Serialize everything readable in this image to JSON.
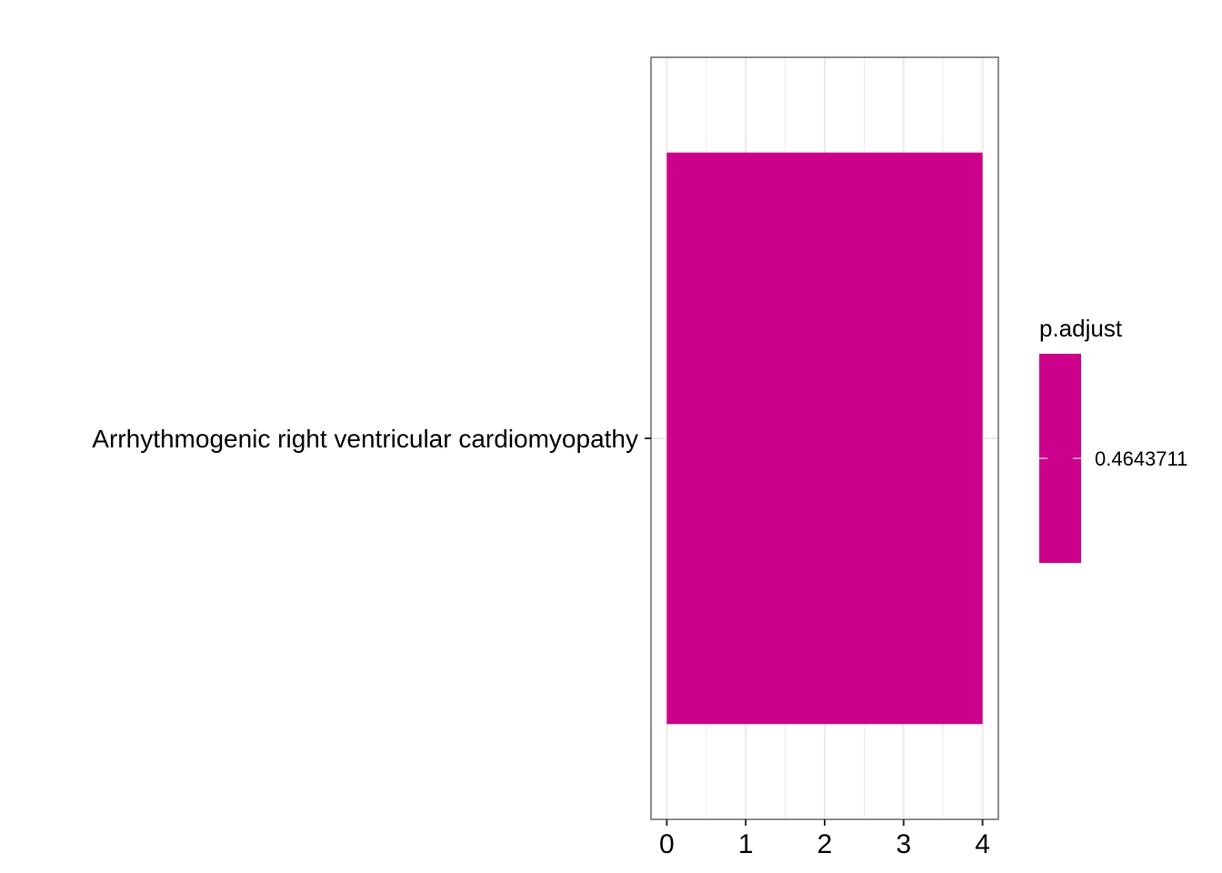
{
  "chart_data": {
    "type": "bar",
    "orientation": "horizontal",
    "categories": [
      "Arrhythmogenic right ventricular cardiomyopathy"
    ],
    "values": [
      4
    ],
    "xlim": [
      -0.2,
      4.2
    ],
    "x_ticks": [
      0,
      1,
      2,
      3,
      4
    ],
    "x_tick_labels": [
      "0",
      "1",
      "2",
      "3",
      "4"
    ],
    "grid": true,
    "bar_color": "#CC008B",
    "legend": {
      "title": "p.adjust",
      "position": "right",
      "type": "colorbar",
      "tick_values": [
        "0.4643711"
      ],
      "color": "#CC008B"
    }
  }
}
